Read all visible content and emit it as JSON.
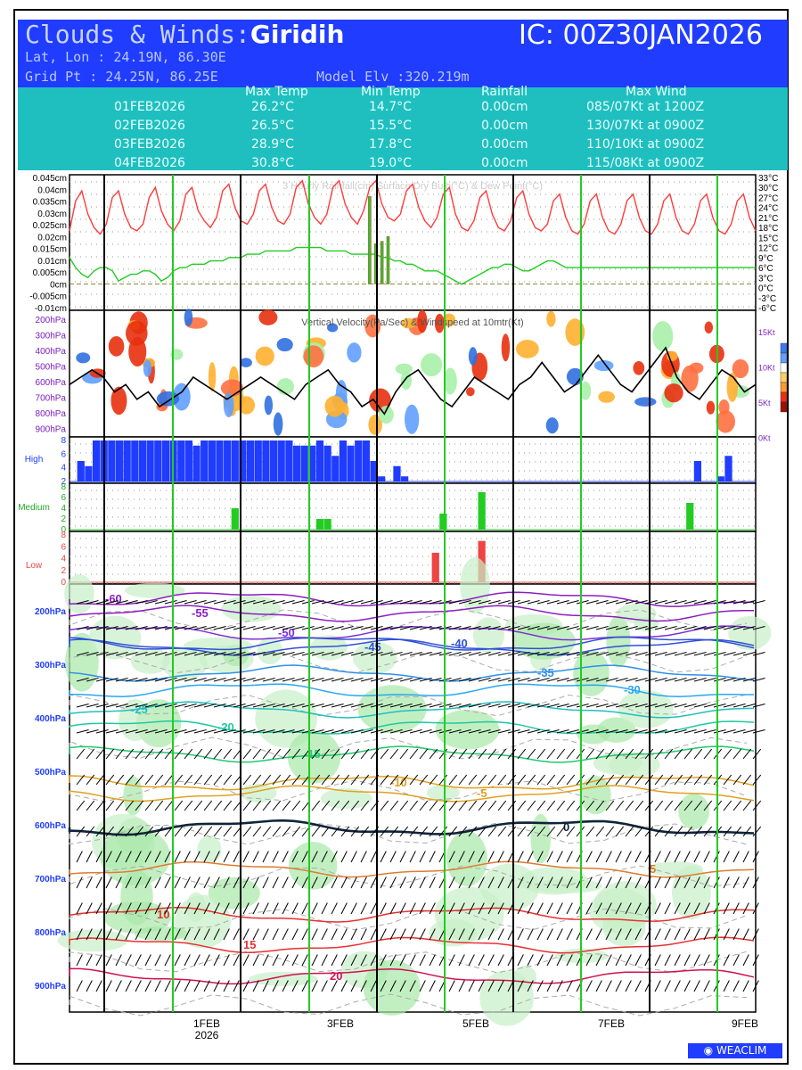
{
  "header": {
    "title_prefix": "Clouds & Winds:",
    "station": "Giridih",
    "ic": "IC: 00Z30JAN2026",
    "latlon": "Lat, Lon : 24.19N, 86.30E",
    "gridpt": "Grid Pt  : 24.25N, 86.25E",
    "model_elv": "Model Elv :320.219m"
  },
  "summary": {
    "columns": [
      "Max Temp",
      "Min Temp",
      "Rainfall",
      "Max Wind"
    ],
    "rows": [
      {
        "date": "01FEB2026",
        "max": "26.2°C",
        "min": "14.7°C",
        "rain": "0.00cm",
        "wind": "085/07Kt at 1200Z"
      },
      {
        "date": "02FEB2026",
        "max": "26.5°C",
        "min": "15.5°C",
        "rain": "0.00cm",
        "wind": "130/07Kt at 0900Z"
      },
      {
        "date": "03FEB2026",
        "max": "28.9°C",
        "min": "17.8°C",
        "rain": "0.00cm",
        "wind": "110/10Kt at 0900Z"
      },
      {
        "date": "04FEB2026",
        "max": "30.8°C",
        "min": "19.0°C",
        "rain": "0.00cm",
        "wind": "115/08Kt at 0900Z"
      }
    ]
  },
  "footer_logo": "WEACLIM",
  "chart_data": [
    {
      "type": "line",
      "title": "3 Hourly Rainfall(cm)  Surface Dry Bulb(°C)  & Dew Point(°C)",
      "y_left_ticks": [
        "0.045cm",
        "0.04cm",
        "0.035cm",
        "0.03cm",
        "0.025cm",
        "0.02cm",
        "0.015cm",
        "0.01cm",
        "0.005cm",
        "0cm",
        "-0.005cm",
        "-0.01cm"
      ],
      "y_right_ticks": [
        "33°C",
        "30°C",
        "27°C",
        "24°C",
        "21°C",
        "18°C",
        "15°C",
        "12°C",
        "9°C",
        "6°C",
        "3°C",
        "0°C",
        "-3°C",
        "-6°C"
      ],
      "ylim_temp": [
        -6,
        33
      ],
      "series": [
        {
          "name": "Surface Dry Bulb(°C)",
          "color": "#ff3b3b",
          "values": [
            17,
            26,
            29,
            22,
            18,
            16,
            19,
            27,
            29,
            22,
            18,
            17,
            19,
            27,
            30,
            23,
            19,
            17,
            20,
            28,
            30,
            23,
            20,
            18,
            21,
            29,
            31,
            24,
            20,
            19,
            22,
            29,
            31,
            24,
            20,
            19,
            22,
            30,
            32,
            25,
            21,
            19,
            22,
            30,
            32,
            25,
            21,
            19,
            23,
            30,
            32,
            25,
            21,
            20,
            22,
            29,
            31,
            24,
            20,
            18,
            21,
            28,
            30,
            22,
            18,
            17,
            20,
            27,
            29,
            22,
            18,
            17,
            20,
            27,
            29,
            22,
            18,
            17,
            19,
            26,
            28,
            21,
            17,
            16,
            19,
            26,
            28,
            21,
            17,
            16,
            19,
            26,
            28,
            21,
            17,
            16,
            19,
            26,
            28,
            21,
            17,
            16,
            19,
            26,
            28,
            21,
            17,
            16,
            19,
            26,
            28,
            21,
            17
          ]
        },
        {
          "name": "Dew Point(°C)",
          "color": "#22cc22",
          "values": [
            9,
            6,
            4,
            3,
            5,
            6,
            6,
            5,
            2,
            3,
            4,
            4,
            5,
            5,
            4,
            2,
            3,
            5,
            6,
            6,
            7,
            7,
            7,
            8,
            8,
            8,
            9,
            9,
            9,
            10,
            10,
            10,
            11,
            11,
            11,
            11,
            11,
            12,
            12,
            12,
            12,
            12,
            11,
            11,
            11,
            11,
            10,
            10,
            10,
            10,
            10,
            9,
            9,
            8,
            8,
            7,
            7,
            6,
            5,
            5,
            5,
            4,
            3,
            2,
            1,
            2,
            3,
            4,
            5,
            6,
            6,
            7,
            7,
            6,
            5,
            5,
            6,
            7,
            8,
            8,
            7,
            6,
            6,
            6,
            6,
            6,
            6,
            6,
            6,
            6,
            6,
            6,
            6,
            6,
            6,
            6,
            6,
            6,
            6,
            6,
            6,
            6,
            6,
            6,
            6,
            6,
            6,
            6,
            6,
            6,
            6,
            6,
            6
          ]
        },
        {
          "name": "3 Hourly Rainfall(cm)",
          "color": "#cc4444",
          "bars": [
            {
              "i": 49,
              "v": 0.037
            },
            {
              "i": 50,
              "v": 0.017
            },
            {
              "i": 51,
              "v": 0.018
            },
            {
              "i": 52,
              "v": 0.02
            }
          ]
        }
      ]
    },
    {
      "type": "heatmap",
      "title": "Vertical Velocity(Pa/Sec) & Windspeed at 10mtr(Kt)",
      "y_left_ticks": [
        "200hPa",
        "300hPa",
        "400hPa",
        "500hPa",
        "600hPa",
        "700hPa",
        "800hPa",
        "900hPa"
      ],
      "y_right_ticks": [
        "15Kt",
        "10Kt",
        "5Kt",
        "0Kt"
      ],
      "windspeed_kt": [
        7,
        8,
        9,
        8,
        6,
        7,
        5,
        6,
        4,
        5,
        6,
        8,
        7,
        6,
        5,
        6,
        7,
        8,
        7,
        6,
        5,
        7,
        8,
        9,
        7,
        6,
        4,
        5,
        3,
        6,
        8,
        9,
        7,
        5,
        4,
        6,
        8,
        7,
        6,
        5,
        7,
        8,
        10,
        8,
        6,
        7,
        9,
        11,
        9,
        7,
        6,
        8,
        10,
        12,
        8,
        6,
        5,
        7,
        9,
        8,
        6,
        7
      ]
    },
    {
      "type": "bar",
      "title": "High",
      "y_ticks": [
        "8",
        "6",
        "4",
        "2"
      ],
      "values": [
        0,
        4,
        3,
        8,
        8,
        8,
        8,
        8,
        8,
        8,
        8,
        8,
        8,
        8,
        8,
        8,
        7,
        8,
        8,
        8,
        8,
        8,
        8,
        8,
        8,
        8,
        8,
        8,
        8,
        7,
        7,
        7,
        8,
        7,
        5,
        8,
        7,
        8,
        8,
        4,
        1,
        0,
        3,
        1,
        0,
        0,
        0,
        0,
        0,
        0,
        0,
        0,
        0,
        0,
        0,
        0,
        0,
        0,
        0,
        0,
        0,
        0,
        0,
        0,
        0,
        0,
        0,
        0,
        0,
        0,
        0,
        0,
        0,
        0,
        0,
        0,
        0,
        0,
        0,
        0,
        0,
        4,
        0,
        0,
        1,
        5,
        0,
        0,
        0
      ]
    },
    {
      "type": "bar",
      "title": "Medium",
      "y_ticks": [
        "8",
        "6",
        "4",
        "2",
        "0"
      ],
      "values": [
        0,
        0,
        0,
        0,
        0,
        0,
        0,
        0,
        0,
        0,
        0,
        0,
        0,
        0,
        0,
        0,
        0,
        0,
        0,
        0,
        0,
        4,
        0,
        0,
        0,
        0,
        0,
        0,
        0,
        0,
        0,
        0,
        2,
        2,
        0,
        0,
        0,
        0,
        0,
        0,
        0,
        0,
        0,
        0,
        0,
        0,
        0,
        0,
        3,
        0,
        0,
        0,
        0,
        7,
        0,
        0,
        0,
        0,
        0,
        0,
        0,
        0,
        0,
        0,
        0,
        0,
        0,
        0,
        0,
        0,
        0,
        0,
        0,
        0,
        0,
        0,
        0,
        0,
        0,
        0,
        5,
        0,
        0,
        0,
        0,
        0,
        0,
        0,
        0
      ]
    },
    {
      "type": "bar",
      "title": "Low",
      "y_ticks": [
        "8",
        "6",
        "4",
        "2",
        "0"
      ],
      "values": [
        0,
        0,
        0,
        0,
        0,
        0,
        0,
        0,
        0,
        0,
        0,
        0,
        0,
        0,
        0,
        0,
        0,
        0,
        0,
        0,
        0,
        0,
        0,
        0,
        0,
        0,
        0,
        0,
        0,
        0,
        0,
        0,
        0,
        0,
        0,
        0,
        0,
        0,
        0,
        0,
        0,
        0,
        0,
        0,
        0,
        0,
        0,
        5,
        0,
        0,
        0,
        0,
        0,
        7,
        0,
        0,
        0,
        0,
        0,
        0,
        0,
        0,
        0,
        0,
        0,
        0,
        0,
        0,
        0,
        0,
        0,
        0,
        0,
        0,
        0,
        0,
        0,
        0,
        0,
        0,
        0,
        0,
        0,
        0,
        0,
        0,
        0,
        0,
        0
      ]
    },
    {
      "type": "heatmap",
      "title": "",
      "y_ticks": [
        "200hPa",
        "300hPa",
        "400hPa",
        "500hPa",
        "600hPa",
        "700hPa",
        "800hPa",
        "900hPa"
      ],
      "x_ticks": [
        "1FEB\n2026",
        "3FEB",
        "5FEB",
        "7FEB",
        "9FEB"
      ],
      "contours": [
        {
          "label": "-60",
          "color": "#8b1fbf"
        },
        {
          "label": "-55",
          "color": "#8b1fbf"
        },
        {
          "label": "-50",
          "color": "#7b2fd6"
        },
        {
          "label": "-45",
          "color": "#3050d8"
        },
        {
          "label": "-40",
          "color": "#3050d8"
        },
        {
          "label": "-35",
          "color": "#2f90e8"
        },
        {
          "label": "-30",
          "color": "#2aa7f0"
        },
        {
          "label": "-25",
          "color": "#20c0c0"
        },
        {
          "label": "-20",
          "color": "#20c8a0"
        },
        {
          "label": "-15",
          "color": "#20c870"
        },
        {
          "label": "-10",
          "color": "#e0a020"
        },
        {
          "label": "-5",
          "color": "#e0a020"
        },
        {
          "label": "0",
          "color": "#10243a"
        },
        {
          "label": "5",
          "color": "#e07a30"
        },
        {
          "label": "10",
          "color": "#e83030"
        },
        {
          "label": "15",
          "color": "#e83030"
        },
        {
          "label": "20",
          "color": "#d01050"
        }
      ]
    }
  ]
}
